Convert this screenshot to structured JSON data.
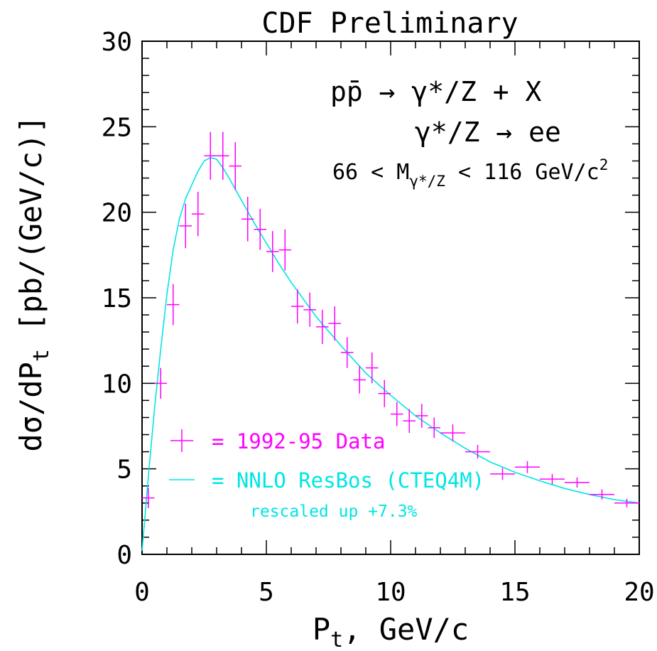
{
  "chart_data": {
    "type": "scatter",
    "title": "CDF Preliminary",
    "xlabel_main": "P",
    "xlabel_sub": "t",
    "xlabel_rest": ", GeV/c",
    "ylabel_main": "dσ/dP",
    "ylabel_sub": "t",
    "ylabel_rest": " [pb/(GeV/c)]",
    "xlim": [
      0,
      20
    ],
    "ylim": [
      0,
      30
    ],
    "xticks": [
      "0",
      "5",
      "10",
      "15",
      "20"
    ],
    "yticks": [
      "0",
      "5",
      "10",
      "15",
      "20",
      "25",
      "30"
    ],
    "annotations": {
      "process_line1": "pp̄ → γ*/Z + X",
      "process_line2": "γ*/Z → ee",
      "mass_left": "66 < M",
      "mass_sub": "γ*/Z",
      "mass_right": " < 116 GeV/c",
      "mass_sup": "2"
    },
    "colors": {
      "data": "#ff00ff",
      "theory": "#00e5e5",
      "axes": "#000000"
    },
    "series": [
      {
        "name": "= 1992-95 Data",
        "kind": "points",
        "points": [
          {
            "x": 0.25,
            "y": 3.3,
            "xerr": 0.25,
            "yerr": 0.6
          },
          {
            "x": 0.75,
            "y": 10.0,
            "xerr": 0.25,
            "yerr": 0.9
          },
          {
            "x": 1.25,
            "y": 14.6,
            "xerr": 0.25,
            "yerr": 1.2
          },
          {
            "x": 1.75,
            "y": 19.2,
            "xerr": 0.25,
            "yerr": 1.3
          },
          {
            "x": 2.25,
            "y": 19.9,
            "xerr": 0.25,
            "yerr": 1.3
          },
          {
            "x": 2.75,
            "y": 23.3,
            "xerr": 0.25,
            "yerr": 1.4
          },
          {
            "x": 3.25,
            "y": 23.3,
            "xerr": 0.25,
            "yerr": 1.4
          },
          {
            "x": 3.75,
            "y": 22.7,
            "xerr": 0.25,
            "yerr": 1.4
          },
          {
            "x": 4.25,
            "y": 19.6,
            "xerr": 0.25,
            "yerr": 1.3
          },
          {
            "x": 4.75,
            "y": 19.0,
            "xerr": 0.25,
            "yerr": 1.2
          },
          {
            "x": 5.25,
            "y": 17.7,
            "xerr": 0.25,
            "yerr": 1.2
          },
          {
            "x": 5.75,
            "y": 17.8,
            "xerr": 0.25,
            "yerr": 1.2
          },
          {
            "x": 6.25,
            "y": 14.5,
            "xerr": 0.25,
            "yerr": 1.0
          },
          {
            "x": 6.75,
            "y": 14.3,
            "xerr": 0.25,
            "yerr": 1.0
          },
          {
            "x": 7.25,
            "y": 13.3,
            "xerr": 0.25,
            "yerr": 1.0
          },
          {
            "x": 7.75,
            "y": 13.5,
            "xerr": 0.25,
            "yerr": 1.0
          },
          {
            "x": 8.25,
            "y": 11.8,
            "xerr": 0.25,
            "yerr": 0.9
          },
          {
            "x": 8.75,
            "y": 10.2,
            "xerr": 0.25,
            "yerr": 0.8
          },
          {
            "x": 9.25,
            "y": 10.9,
            "xerr": 0.25,
            "yerr": 0.9
          },
          {
            "x": 9.75,
            "y": 9.4,
            "xerr": 0.25,
            "yerr": 0.8
          },
          {
            "x": 10.25,
            "y": 8.2,
            "xerr": 0.25,
            "yerr": 0.7
          },
          {
            "x": 10.75,
            "y": 7.8,
            "xerr": 0.25,
            "yerr": 0.7
          },
          {
            "x": 11.25,
            "y": 8.1,
            "xerr": 0.25,
            "yerr": 0.7
          },
          {
            "x": 11.75,
            "y": 7.4,
            "xerr": 0.25,
            "yerr": 0.6
          },
          {
            "x": 12.5,
            "y": 7.1,
            "xerr": 0.5,
            "yerr": 0.5
          },
          {
            "x": 13.5,
            "y": 6.0,
            "xerr": 0.5,
            "yerr": 0.4
          },
          {
            "x": 14.5,
            "y": 4.7,
            "xerr": 0.5,
            "yerr": 0.35
          },
          {
            "x": 15.5,
            "y": 5.1,
            "xerr": 0.5,
            "yerr": 0.35
          },
          {
            "x": 16.5,
            "y": 4.4,
            "xerr": 0.5,
            "yerr": 0.3
          },
          {
            "x": 17.5,
            "y": 4.2,
            "xerr": 0.5,
            "yerr": 0.3
          },
          {
            "x": 18.5,
            "y": 3.5,
            "xerr": 0.5,
            "yerr": 0.3
          },
          {
            "x": 19.5,
            "y": 3.0,
            "xerr": 0.5,
            "yerr": 0.25
          }
        ]
      },
      {
        "name": "= NNLO ResBos (CTEQ4M)",
        "kind": "line",
        "x": [
          0,
          0.25,
          0.5,
          0.75,
          1.0,
          1.25,
          1.5,
          1.75,
          2.0,
          2.25,
          2.5,
          2.75,
          3.0,
          3.25,
          3.5,
          4.0,
          4.5,
          5.0,
          5.5,
          6.0,
          6.5,
          7.0,
          8.0,
          9.0,
          10.0,
          11.0,
          12.0,
          13.0,
          14.0,
          15.0,
          16.0,
          17.0,
          18.0,
          19.0,
          20.0
        ],
        "y": [
          0.2,
          4.5,
          8.5,
          12.0,
          15.2,
          17.8,
          19.6,
          20.8,
          21.6,
          22.4,
          23.0,
          23.2,
          23.1,
          22.6,
          22.0,
          20.7,
          19.4,
          18.2,
          17.0,
          15.9,
          14.9,
          13.9,
          12.2,
          10.6,
          9.3,
          8.1,
          7.1,
          6.2,
          5.4,
          4.8,
          4.3,
          3.85,
          3.5,
          3.2,
          3.0
        ]
      }
    ],
    "legend": {
      "data_label": "= 1992-95 Data",
      "theory_label": "= NNLO ResBos (CTEQ4M)",
      "theory_note": "rescaled up +7.3%"
    }
  }
}
